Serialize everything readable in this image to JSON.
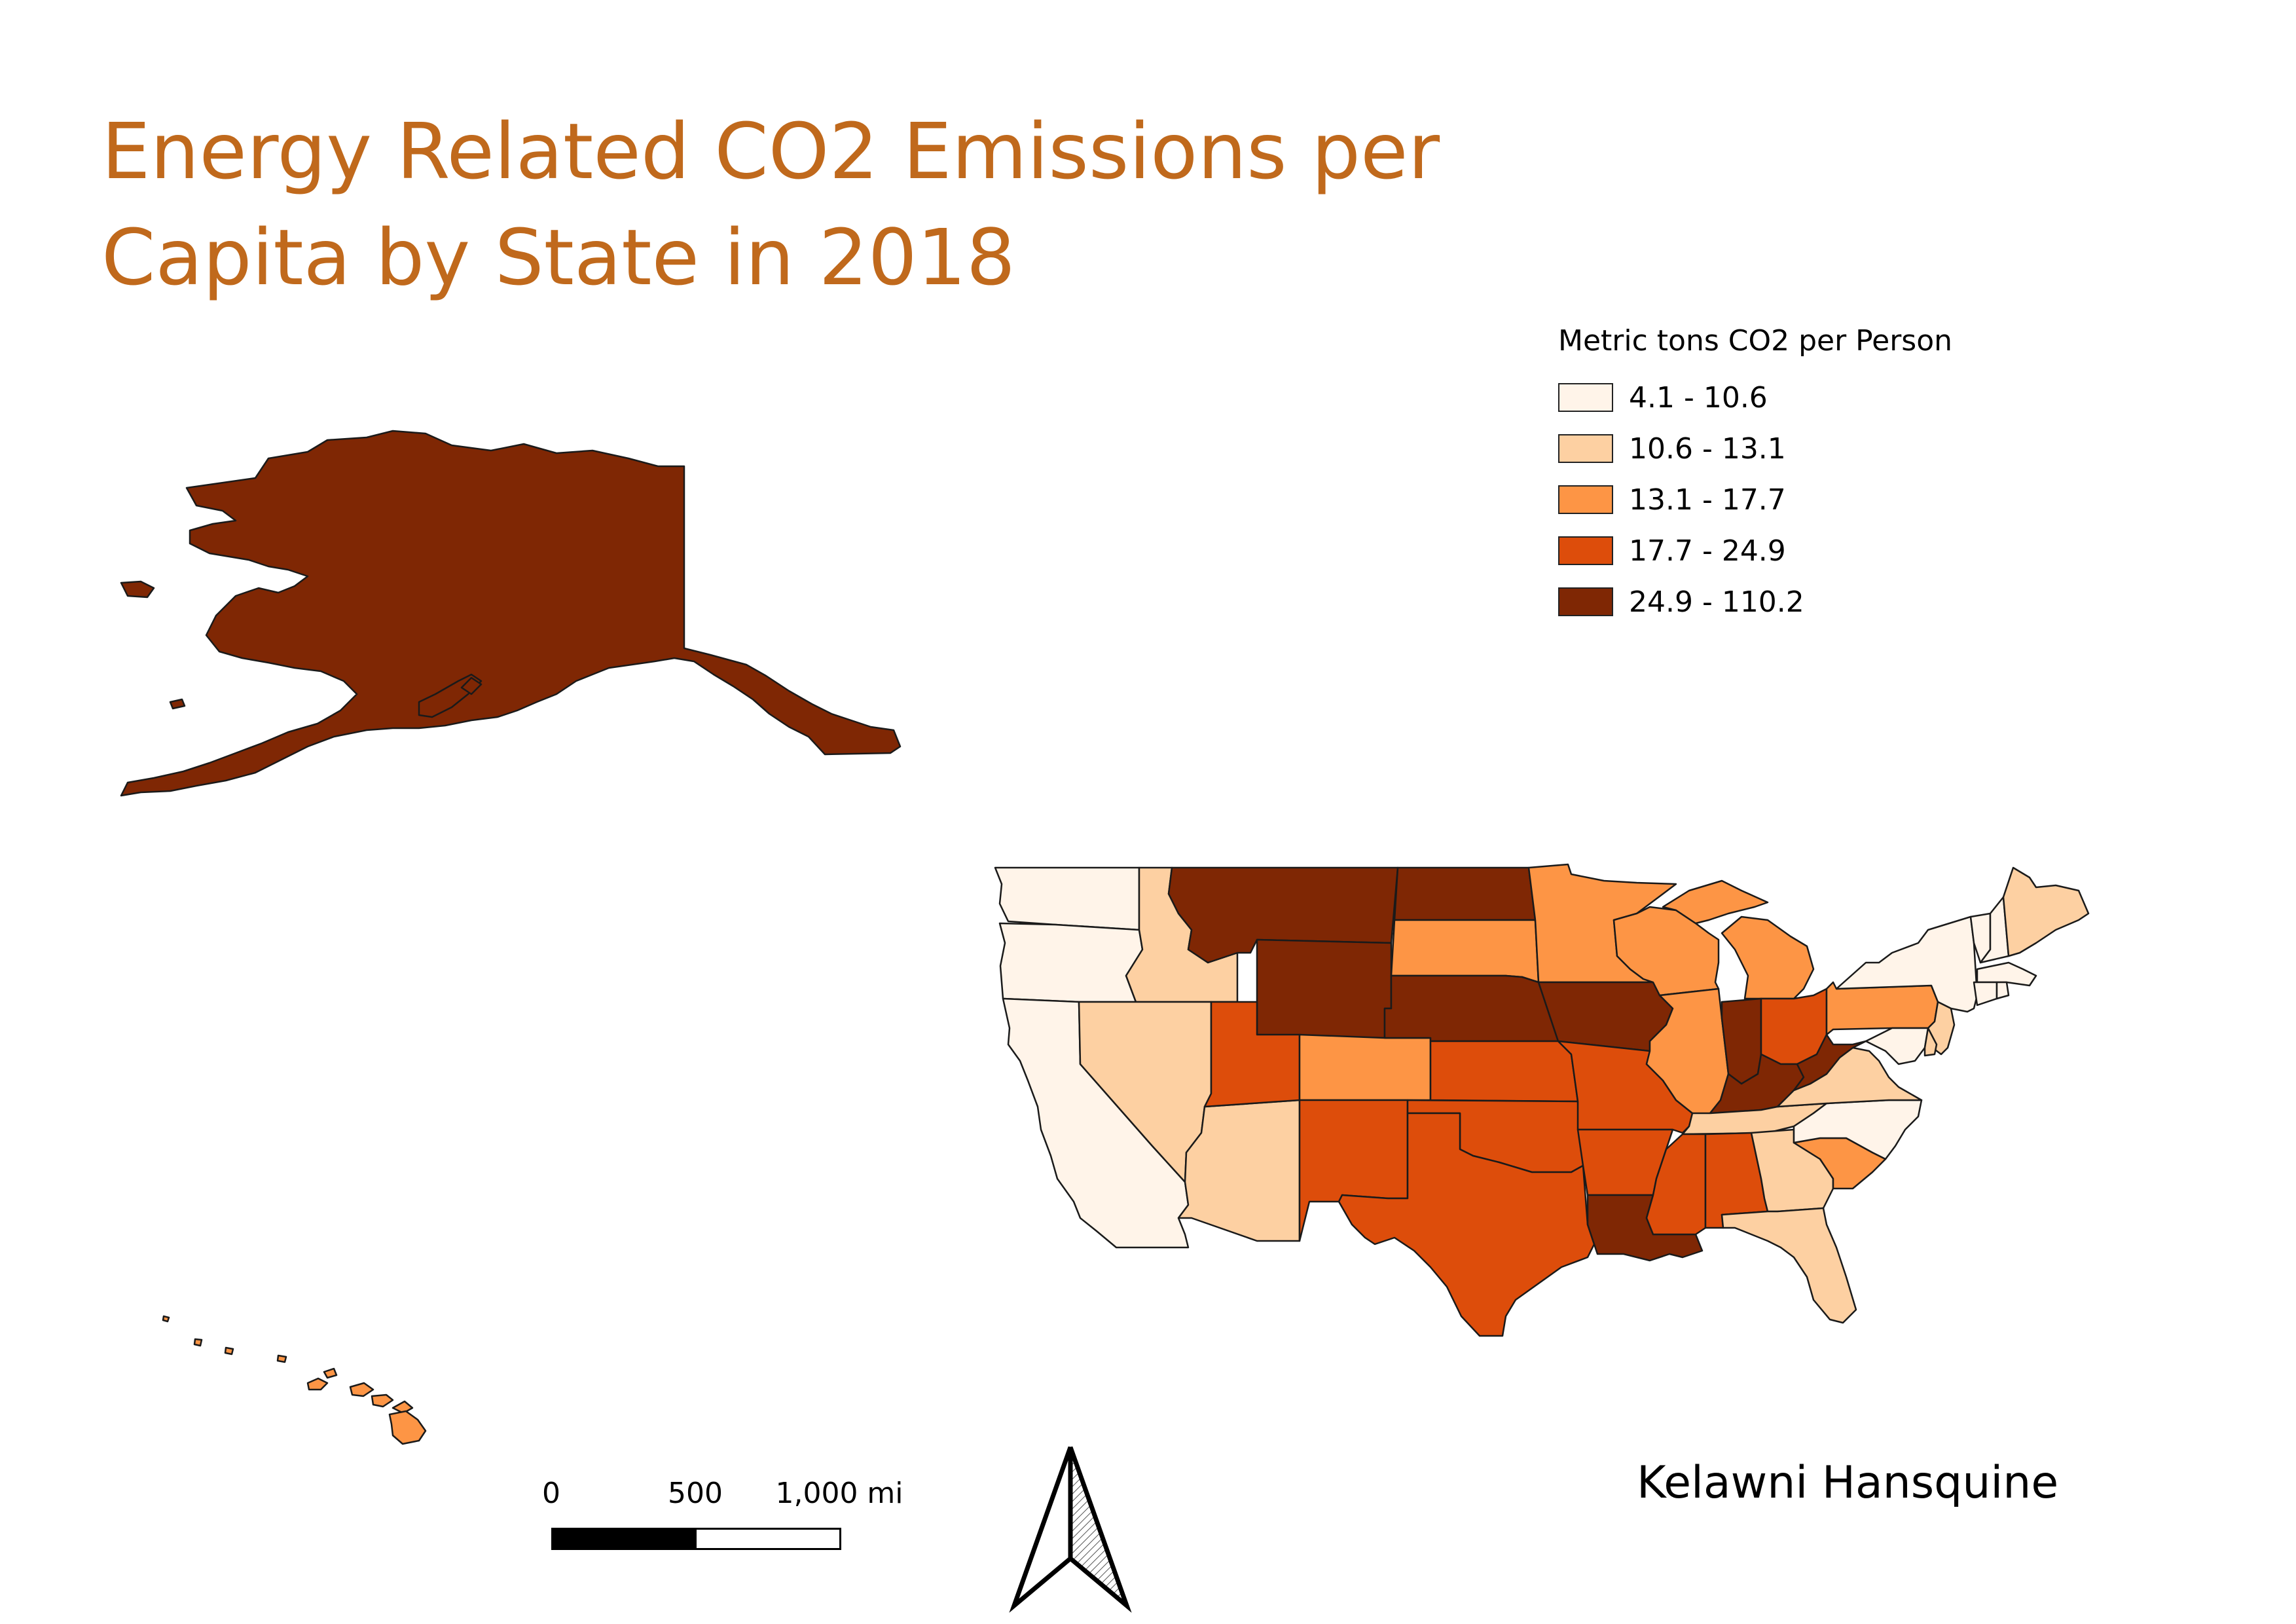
{
  "title": {
    "line1": "Energy Related CO2 Emissions per",
    "line2": "Capita by State in 2018"
  },
  "legend": {
    "title": "Metric tons CO2 per Person",
    "classes": [
      {
        "label": "4.1 - 10.6",
        "color": "#fff4e9"
      },
      {
        "label": "10.6 - 13.1",
        "color": "#fdd0a2"
      },
      {
        "label": "13.1 - 17.7",
        "color": "#fd9545"
      },
      {
        "label": "17.7 - 24.9",
        "color": "#dd4d0b"
      },
      {
        "label": "24.9 - 110.2",
        "color": "#7f2704"
      }
    ]
  },
  "scale_bar": {
    "labels": [
      "0",
      "500",
      "1,000 mi"
    ]
  },
  "author": "Kelawni Hansquine",
  "map": {
    "outline_color": "#1a1a1a",
    "states": [
      {
        "name": "Alaska",
        "class": 4
      },
      {
        "name": "Hawaii",
        "class": 2
      },
      {
        "name": "Washington",
        "class": 0
      },
      {
        "name": "Oregon",
        "class": 0
      },
      {
        "name": "California",
        "class": 0
      },
      {
        "name": "Idaho",
        "class": 1
      },
      {
        "name": "Nevada",
        "class": 1
      },
      {
        "name": "Arizona",
        "class": 1
      },
      {
        "name": "Montana",
        "class": 4
      },
      {
        "name": "Wyoming",
        "class": 4
      },
      {
        "name": "Utah",
        "class": 3
      },
      {
        "name": "Colorado",
        "class": 2
      },
      {
        "name": "New Mexico",
        "class": 3
      },
      {
        "name": "North Dakota",
        "class": 4
      },
      {
        "name": "South Dakota",
        "class": 2
      },
      {
        "name": "Nebraska",
        "class": 4
      },
      {
        "name": "Kansas",
        "class": 3
      },
      {
        "name": "Oklahoma",
        "class": 3
      },
      {
        "name": "Texas",
        "class": 3
      },
      {
        "name": "Minnesota",
        "class": 2
      },
      {
        "name": "Iowa",
        "class": 4
      },
      {
        "name": "Missouri",
        "class": 3
      },
      {
        "name": "Arkansas",
        "class": 3
      },
      {
        "name": "Louisiana",
        "class": 4
      },
      {
        "name": "Wisconsin",
        "class": 2
      },
      {
        "name": "Illinois",
        "class": 2
      },
      {
        "name": "Michigan",
        "class": 2
      },
      {
        "name": "Indiana",
        "class": 4
      },
      {
        "name": "Ohio",
        "class": 3
      },
      {
        "name": "Kentucky",
        "class": 4
      },
      {
        "name": "Tennessee",
        "class": 1
      },
      {
        "name": "Mississippi",
        "class": 3
      },
      {
        "name": "Alabama",
        "class": 3
      },
      {
        "name": "Georgia",
        "class": 1
      },
      {
        "name": "Florida",
        "class": 1
      },
      {
        "name": "South Carolina",
        "class": 2
      },
      {
        "name": "North Carolina",
        "class": 0
      },
      {
        "name": "Virginia",
        "class": 1
      },
      {
        "name": "West Virginia",
        "class": 4
      },
      {
        "name": "Pennsylvania",
        "class": 2
      },
      {
        "name": "New York",
        "class": 0
      },
      {
        "name": "New Jersey",
        "class": 1
      },
      {
        "name": "Maryland",
        "class": 0
      },
      {
        "name": "Delaware",
        "class": 1
      },
      {
        "name": "Vermont",
        "class": 0
      },
      {
        "name": "New Hampshire",
        "class": 0
      },
      {
        "name": "Maine",
        "class": 1
      },
      {
        "name": "Massachusetts",
        "class": 0
      },
      {
        "name": "Connecticut",
        "class": 0
      },
      {
        "name": "Rhode Island",
        "class": 0
      }
    ]
  }
}
